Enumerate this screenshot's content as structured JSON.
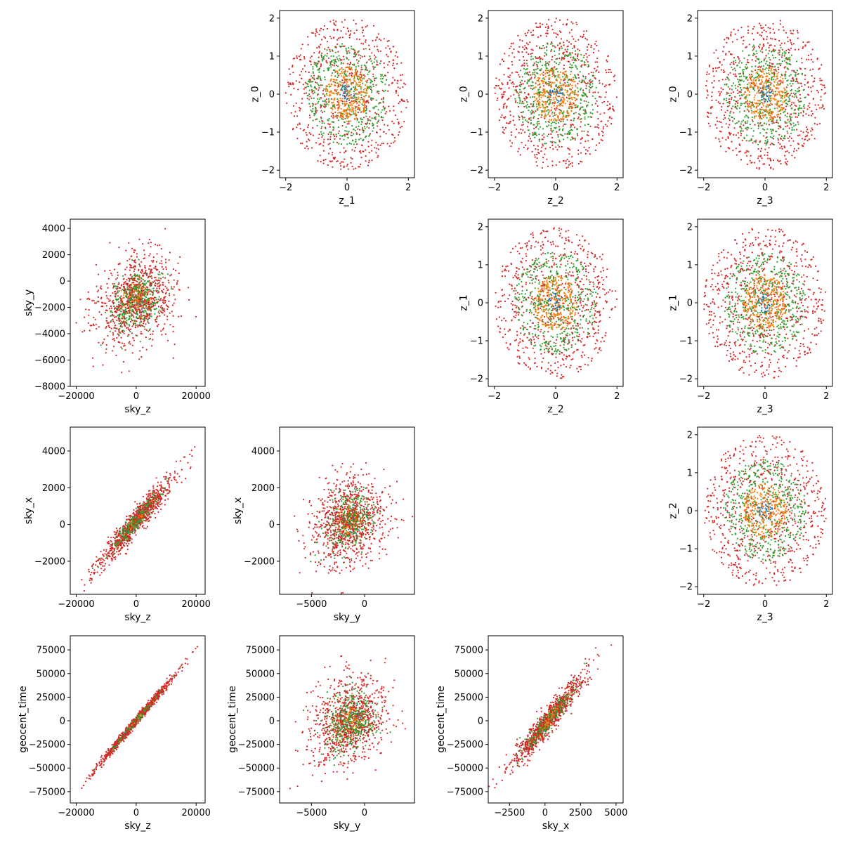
{
  "colors": {
    "z": "#d62728",
    "mid": "#2ca02c",
    "inner": "#ff7f0e",
    "core": "#1f77b4",
    "frame": "#000000",
    "background": "#ffffff"
  },
  "chart_data": [
    {
      "type": "scatter",
      "id": "z0-vs-z1",
      "row": 0,
      "col": 1,
      "xlabel": "z_1",
      "ylabel": "z_0",
      "xlim": [
        -2.2,
        2.2
      ],
      "ylim": [
        -2.2,
        2.2
      ],
      "xticks": [
        -2,
        0,
        2
      ],
      "yticks": [
        -2,
        -1,
        0,
        1,
        2
      ],
      "pattern": "rings",
      "rings": [
        2.0,
        1.35,
        0.72,
        0.25
      ]
    },
    {
      "type": "scatter",
      "id": "z0-vs-z2",
      "row": 0,
      "col": 2,
      "xlabel": "z_2",
      "ylabel": "z_0",
      "xlim": [
        -2.2,
        2.2
      ],
      "ylim": [
        -2.2,
        2.2
      ],
      "xticks": [
        -2,
        0,
        2
      ],
      "yticks": [
        -2,
        -1,
        0,
        1,
        2
      ],
      "pattern": "rings",
      "rings": [
        2.0,
        1.35,
        0.72,
        0.25
      ]
    },
    {
      "type": "scatter",
      "id": "z0-vs-z3",
      "row": 0,
      "col": 3,
      "xlabel": "z_3",
      "ylabel": "z_0",
      "xlim": [
        -2.2,
        2.2
      ],
      "ylim": [
        -2.2,
        2.2
      ],
      "xticks": [
        -2,
        0,
        2
      ],
      "yticks": [
        -2,
        -1,
        0,
        1,
        2
      ],
      "pattern": "rings",
      "rings": [
        2.0,
        1.35,
        0.72,
        0.25
      ]
    },
    {
      "type": "scatter",
      "id": "sky_y-vs-sky_z",
      "row": 1,
      "col": 0,
      "xlabel": "sky_z",
      "ylabel": "sky_y",
      "xlim": [
        -22000,
        23000
      ],
      "ylim": [
        -8000,
        4700
      ],
      "xticks": [
        -20000,
        0,
        20000
      ],
      "yticks": [
        -8000,
        -6000,
        -4000,
        -2000,
        0,
        2000,
        4000
      ],
      "pattern": "sky_zy"
    },
    {
      "type": "scatter",
      "id": "z1-vs-z2",
      "row": 1,
      "col": 2,
      "xlabel": "z_2",
      "ylabel": "z_1",
      "xlim": [
        -2.2,
        2.2
      ],
      "ylim": [
        -2.2,
        2.2
      ],
      "xticks": [
        -2,
        0,
        2
      ],
      "yticks": [
        -2,
        -1,
        0,
        1,
        2
      ],
      "pattern": "rings",
      "rings": [
        2.0,
        1.35,
        0.72,
        0.25
      ]
    },
    {
      "type": "scatter",
      "id": "z1-vs-z3",
      "row": 1,
      "col": 3,
      "xlabel": "z_3",
      "ylabel": "z_1",
      "xlim": [
        -2.2,
        2.2
      ],
      "ylim": [
        -2.2,
        2.2
      ],
      "xticks": [
        -2,
        0,
        2
      ],
      "yticks": [
        -2,
        -1,
        0,
        1,
        2
      ],
      "pattern": "rings",
      "rings": [
        2.0,
        1.35,
        0.72,
        0.25
      ]
    },
    {
      "type": "scatter",
      "id": "sky_x-vs-sky_z",
      "row": 2,
      "col": 0,
      "xlabel": "sky_z",
      "ylabel": "sky_x",
      "xlim": [
        -22000,
        23000
      ],
      "ylim": [
        -3800,
        5300
      ],
      "xticks": [
        -20000,
        0,
        20000
      ],
      "yticks": [
        -2000,
        0,
        2000,
        4000
      ],
      "pattern": "sky_zx"
    },
    {
      "type": "scatter",
      "id": "sky_x-vs-sky_y",
      "row": 2,
      "col": 1,
      "xlabel": "sky_y",
      "ylabel": "sky_x",
      "xlim": [
        -8000,
        4700
      ],
      "ylim": [
        -3800,
        5300
      ],
      "xticks": [
        -5000,
        0
      ],
      "yticks": [
        -2000,
        0,
        2000,
        4000
      ],
      "pattern": "sky_yx"
    },
    {
      "type": "scatter",
      "id": "z2-vs-z3",
      "row": 2,
      "col": 3,
      "xlabel": "z_3",
      "ylabel": "z_2",
      "xlim": [
        -2.2,
        2.2
      ],
      "ylim": [
        -2.2,
        2.2
      ],
      "xticks": [
        -2,
        0,
        2
      ],
      "yticks": [
        -2,
        -1,
        0,
        1,
        2
      ],
      "pattern": "rings",
      "rings": [
        2.0,
        1.35,
        0.72,
        0.25
      ]
    },
    {
      "type": "scatter",
      "id": "geocent_time-vs-sky_z",
      "row": 3,
      "col": 0,
      "xlabel": "sky_z",
      "ylabel": "geocent_time",
      "xlim": [
        -22000,
        23000
      ],
      "ylim": [
        -87000,
        90000
      ],
      "xticks": [
        -20000,
        0,
        20000
      ],
      "yticks": [
        -75000,
        -50000,
        -25000,
        0,
        25000,
        50000,
        75000
      ],
      "pattern": "sky_zt"
    },
    {
      "type": "scatter",
      "id": "geocent_time-vs-sky_y",
      "row": 3,
      "col": 1,
      "xlabel": "sky_y",
      "ylabel": "geocent_time",
      "xlim": [
        -8000,
        4700
      ],
      "ylim": [
        -87000,
        90000
      ],
      "xticks": [
        -5000,
        0
      ],
      "yticks": [
        -75000,
        -50000,
        -25000,
        0,
        25000,
        50000,
        75000
      ],
      "pattern": "sky_yt"
    },
    {
      "type": "scatter",
      "id": "geocent_time-vs-sky_x",
      "row": 3,
      "col": 2,
      "xlabel": "sky_x",
      "ylabel": "geocent_time",
      "xlim": [
        -4000,
        5500
      ],
      "ylim": [
        -87000,
        90000
      ],
      "xticks": [
        -2500,
        0,
        2500,
        5000
      ],
      "yticks": [
        -75000,
        -50000,
        -25000,
        0,
        25000,
        50000,
        75000
      ],
      "pattern": "sky_xt"
    }
  ]
}
